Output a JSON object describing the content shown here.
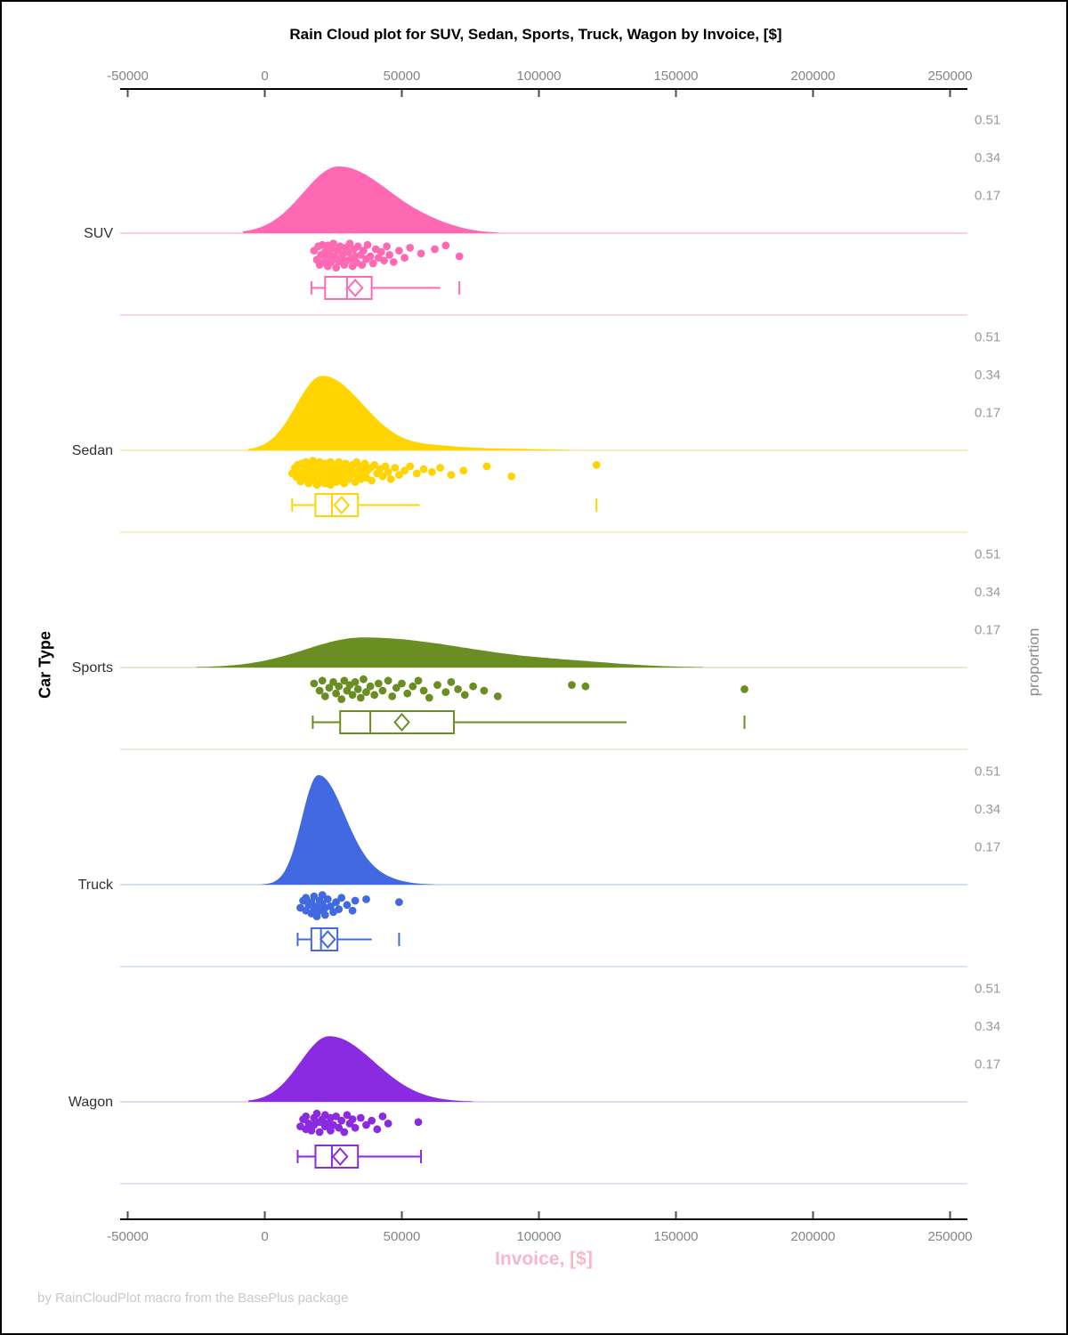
{
  "header": {
    "title": "Rain Cloud plot for SUV, Sedan, Sports, Truck, Wagon by Invoice, [$]"
  },
  "axes": {
    "x_title": "Invoice, [$]",
    "y_title": "Car Type",
    "right_title": "proportion"
  },
  "footer": {
    "note": "by RainCloudPlot macro from the BasePlus package"
  },
  "chart_data": {
    "type": "raincloud (half-violin density + strip points + box plot per category)",
    "title": "Rain Cloud plot for SUV, Sedan, Sports, Truck, Wagon by Invoice, [$]",
    "xlabel": "Invoice, [$]",
    "ylabel": "Car Type",
    "right_axis_label": "proportion",
    "x_ticks": [
      -50000,
      0,
      50000,
      100000,
      150000,
      200000,
      250000
    ],
    "x_range": [
      -52500,
      256500
    ],
    "proportion_ticks": [
      "0.51",
      "0.34",
      "0.17"
    ],
    "proportion_tick_values": [
      0.51,
      0.34,
      0.17
    ],
    "categories": [
      {
        "name": "SUV",
        "color": "#ff69b4",
        "tint": "#f8bfdb",
        "density": {
          "mu": 27000,
          "sl": 13000,
          "sr": 19000,
          "peak": 0.3,
          "bumps": [
            [
              62000,
              9000,
              0.012
            ]
          ],
          "xmin": -8000,
          "xmax": 85000
        },
        "box": {
          "whisker_low": 17000,
          "q1": 22000,
          "median": 30000,
          "mean": 33000,
          "q3": 39000,
          "whisker_high": 64000,
          "max_tick": 71000,
          "right_cap": false
        },
        "points": [
          [
            18000,
            0.3
          ],
          [
            19000,
            0.62
          ],
          [
            19500,
            0.15
          ],
          [
            20000,
            0.8
          ],
          [
            20500,
            0.45
          ],
          [
            21000,
            0.1
          ],
          [
            21500,
            0.7
          ],
          [
            22000,
            0.35
          ],
          [
            22500,
            0.55
          ],
          [
            23000,
            0.12
          ],
          [
            23000,
            0.85
          ],
          [
            23500,
            0.4
          ],
          [
            24000,
            0.72
          ],
          [
            24500,
            0.22
          ],
          [
            25000,
            0.6
          ],
          [
            25000,
            0.05
          ],
          [
            25500,
            0.5
          ],
          [
            26000,
            0.9
          ],
          [
            26500,
            0.3
          ],
          [
            27000,
            0.68
          ],
          [
            27500,
            0.15
          ],
          [
            28000,
            0.55
          ],
          [
            28500,
            0.42
          ],
          [
            29000,
            0.8
          ],
          [
            29500,
            0.2
          ],
          [
            30000,
            0.65
          ],
          [
            30500,
            0.35
          ],
          [
            31000,
            0.05
          ],
          [
            31500,
            0.58
          ],
          [
            32000,
            0.85
          ],
          [
            32500,
            0.25
          ],
          [
            33000,
            0.5
          ],
          [
            33500,
            0.72
          ],
          [
            34000,
            0.15
          ],
          [
            35000,
            0.45
          ],
          [
            35500,
            0.8
          ],
          [
            36000,
            0.3
          ],
          [
            37000,
            0.6
          ],
          [
            37500,
            0.1
          ],
          [
            38500,
            0.5
          ],
          [
            39500,
            0.75
          ],
          [
            40500,
            0.25
          ],
          [
            41500,
            0.55
          ],
          [
            42500,
            0.35
          ],
          [
            43500,
            0.65
          ],
          [
            44500,
            0.15
          ],
          [
            45500,
            0.45
          ],
          [
            47000,
            0.7
          ],
          [
            49000,
            0.3
          ],
          [
            51000,
            0.55
          ],
          [
            53000,
            0.2
          ],
          [
            57000,
            0.4
          ],
          [
            62000,
            0.25
          ],
          [
            66000,
            0.12
          ],
          [
            71000,
            0.5
          ]
        ]
      },
      {
        "name": "Sedan",
        "color": "#ffd400",
        "tint": "#f5e6a3",
        "density": {
          "mu": 21000,
          "sl": 9500,
          "sr": 15000,
          "peak": 0.335,
          "bumps": [
            [
              63000,
              10000,
              0.016
            ],
            [
              88000,
              14000,
              0.007
            ]
          ],
          "xmin": -6000,
          "xmax": 112000
        },
        "box": {
          "whisker_low": 10000,
          "q1": 18500,
          "median": 24500,
          "mean": 28000,
          "q3": 34000,
          "whisker_high": 56500,
          "max_tick": 121000,
          "right_cap": false
        },
        "points": [
          [
            10000,
            0.5
          ],
          [
            11000,
            0.3
          ],
          [
            11500,
            0.62
          ],
          [
            12000,
            0.2
          ],
          [
            12500,
            0.45
          ],
          [
            13000,
            0.78
          ],
          [
            13500,
            0.15
          ],
          [
            14000,
            0.55
          ],
          [
            14500,
            0.35
          ],
          [
            15000,
            0.7
          ],
          [
            15000,
            0.1
          ],
          [
            15500,
            0.5
          ],
          [
            16000,
            0.85
          ],
          [
            16500,
            0.25
          ],
          [
            17000,
            0.6
          ],
          [
            17000,
            0.4
          ],
          [
            17500,
            0.05
          ],
          [
            18000,
            0.75
          ],
          [
            18000,
            0.3
          ],
          [
            18500,
            0.55
          ],
          [
            19000,
            0.9
          ],
          [
            19000,
            0.2
          ],
          [
            19500,
            0.5
          ],
          [
            20000,
            0.8
          ],
          [
            20000,
            0.1
          ],
          [
            20500,
            0.4
          ],
          [
            21000,
            0.65
          ],
          [
            21000,
            0.3
          ],
          [
            21500,
            0.55
          ],
          [
            22000,
            0.85
          ],
          [
            22000,
            0.15
          ],
          [
            22500,
            0.45
          ],
          [
            23000,
            0.7
          ],
          [
            23000,
            0.25
          ],
          [
            23500,
            0.5
          ],
          [
            24000,
            0.9
          ],
          [
            24000,
            0.1
          ],
          [
            24500,
            0.4
          ],
          [
            25000,
            0.65
          ],
          [
            25000,
            0.3
          ],
          [
            25500,
            0.55
          ],
          [
            26000,
            0.8
          ],
          [
            26000,
            0.2
          ],
          [
            26500,
            0.45
          ],
          [
            27000,
            0.75
          ],
          [
            27000,
            0.1
          ],
          [
            27500,
            0.35
          ],
          [
            28000,
            0.6
          ],
          [
            28500,
            0.25
          ],
          [
            29000,
            0.5
          ],
          [
            29000,
            0.85
          ],
          [
            29500,
            0.15
          ],
          [
            30000,
            0.4
          ],
          [
            30500,
            0.7
          ],
          [
            31000,
            0.3
          ],
          [
            31500,
            0.55
          ],
          [
            32000,
            0.2
          ],
          [
            32500,
            0.45
          ],
          [
            33000,
            0.8
          ],
          [
            33500,
            0.1
          ],
          [
            34000,
            0.6
          ],
          [
            34500,
            0.35
          ],
          [
            35000,
            0.7
          ],
          [
            35500,
            0.25
          ],
          [
            36000,
            0.5
          ],
          [
            36500,
            0.15
          ],
          [
            37000,
            0.65
          ],
          [
            37500,
            0.4
          ],
          [
            38500,
            0.3
          ],
          [
            39000,
            0.75
          ],
          [
            40000,
            0.2
          ],
          [
            41000,
            0.5
          ],
          [
            42000,
            0.35
          ],
          [
            43000,
            0.6
          ],
          [
            44000,
            0.25
          ],
          [
            45000,
            0.45
          ],
          [
            46000,
            0.7
          ],
          [
            47500,
            0.3
          ],
          [
            49000,
            0.55
          ],
          [
            51000,
            0.4
          ],
          [
            53000,
            0.25
          ],
          [
            55500,
            0.5
          ],
          [
            58000,
            0.35
          ],
          [
            61000,
            0.45
          ],
          [
            64000,
            0.3
          ],
          [
            68000,
            0.55
          ],
          [
            72500,
            0.4
          ],
          [
            81000,
            0.25
          ],
          [
            90000,
            0.6
          ],
          [
            121000,
            0.2
          ]
        ]
      },
      {
        "name": "Sports",
        "color": "#6b8e23",
        "tint": "#d9e3c4",
        "density": {
          "mu": 36000,
          "sl": 21000,
          "sr": 40000,
          "peak": 0.135,
          "bumps": [
            [
              115000,
              18000,
              0.012
            ]
          ],
          "xmin": -25000,
          "xmax": 160000
        },
        "box": {
          "whisker_low": 17500,
          "q1": 27500,
          "median": 38500,
          "mean": 50000,
          "q3": 69000,
          "whisker_high": 132000,
          "max_tick": 175000,
          "right_cap": false
        },
        "points": [
          [
            18000,
            0.25
          ],
          [
            20000,
            0.5
          ],
          [
            21000,
            0.15
          ],
          [
            22000,
            0.7
          ],
          [
            23500,
            0.4
          ],
          [
            25000,
            0.2
          ],
          [
            26000,
            0.6
          ],
          [
            27000,
            0.35
          ],
          [
            28000,
            0.8
          ],
          [
            29000,
            0.15
          ],
          [
            30000,
            0.5
          ],
          [
            31000,
            0.3
          ],
          [
            32000,
            0.65
          ],
          [
            33000,
            0.2
          ],
          [
            34000,
            0.45
          ],
          [
            35000,
            0.75
          ],
          [
            36000,
            0.1
          ],
          [
            37000,
            0.55
          ],
          [
            38500,
            0.35
          ],
          [
            40000,
            0.65
          ],
          [
            41500,
            0.25
          ],
          [
            43000,
            0.5
          ],
          [
            45000,
            0.15
          ],
          [
            46500,
            0.7
          ],
          [
            48000,
            0.4
          ],
          [
            50000,
            0.25
          ],
          [
            52000,
            0.6
          ],
          [
            54000,
            0.35
          ],
          [
            56000,
            0.15
          ],
          [
            58000,
            0.5
          ],
          [
            60000,
            0.75
          ],
          [
            63000,
            0.3
          ],
          [
            66000,
            0.55
          ],
          [
            68000,
            0.2
          ],
          [
            70500,
            0.45
          ],
          [
            73000,
            0.65
          ],
          [
            76000,
            0.35
          ],
          [
            80000,
            0.5
          ],
          [
            85000,
            0.7
          ],
          [
            112000,
            0.3
          ],
          [
            117000,
            0.35
          ],
          [
            175000,
            0.45
          ]
        ]
      },
      {
        "name": "Truck",
        "color": "#4169e1",
        "tint": "#c4d3f1",
        "density": {
          "mu": 19500,
          "sl": 6000,
          "sr": 9500,
          "peak": 0.488,
          "bumps": [
            [
              38000,
              9000,
              0.035
            ]
          ],
          "xmin": -1000,
          "xmax": 62000
        },
        "box": {
          "whisker_low": 12000,
          "q1": 17000,
          "median": 20500,
          "mean": 23000,
          "q3": 26500,
          "whisker_high": 39000,
          "max_tick": 49000,
          "right_cap": false
        },
        "points": [
          [
            13000,
            0.5
          ],
          [
            14000,
            0.25
          ],
          [
            15000,
            0.6
          ],
          [
            15000,
            0.15
          ],
          [
            16000,
            0.4
          ],
          [
            17000,
            0.7
          ],
          [
            17000,
            0.3
          ],
          [
            18000,
            0.55
          ],
          [
            18000,
            0.1
          ],
          [
            19000,
            0.45
          ],
          [
            19000,
            0.8
          ],
          [
            20000,
            0.25
          ],
          [
            20000,
            0.6
          ],
          [
            21000,
            0.35
          ],
          [
            21000,
            0.05
          ],
          [
            22000,
            0.5
          ],
          [
            22000,
            0.75
          ],
          [
            23000,
            0.2
          ],
          [
            24000,
            0.45
          ],
          [
            25000,
            0.65
          ],
          [
            26000,
            0.3
          ],
          [
            27000,
            0.55
          ],
          [
            28000,
            0.15
          ],
          [
            30000,
            0.4
          ],
          [
            32000,
            0.6
          ],
          [
            33000,
            0.25
          ],
          [
            37000,
            0.2
          ],
          [
            49000,
            0.3
          ]
        ]
      },
      {
        "name": "Wagon",
        "color": "#8a2be2",
        "tint": "#dcc9f0",
        "density": {
          "mu": 23500,
          "sl": 10500,
          "sr": 16500,
          "peak": 0.295,
          "bumps": [],
          "xmin": -6000,
          "xmax": 76000
        },
        "box": {
          "whisker_low": 12000,
          "q1": 18500,
          "median": 24500,
          "mean": 27500,
          "q3": 34000,
          "whisker_high": 57000,
          "max_tick": null,
          "right_cap": true
        },
        "points": [
          [
            13000,
            0.55
          ],
          [
            14000,
            0.3
          ],
          [
            15000,
            0.65
          ],
          [
            15000,
            0.2
          ],
          [
            16000,
            0.45
          ],
          [
            17000,
            0.7
          ],
          [
            18000,
            0.25
          ],
          [
            18000,
            0.5
          ],
          [
            19000,
            0.1
          ],
          [
            20000,
            0.4
          ],
          [
            20000,
            0.75
          ],
          [
            21000,
            0.3
          ],
          [
            22000,
            0.55
          ],
          [
            22000,
            0.15
          ],
          [
            23000,
            0.45
          ],
          [
            24000,
            0.7
          ],
          [
            24000,
            0.25
          ],
          [
            25000,
            0.5
          ],
          [
            26000,
            0.2
          ],
          [
            27000,
            0.6
          ],
          [
            28000,
            0.35
          ],
          [
            29000,
            0.75
          ],
          [
            30000,
            0.15
          ],
          [
            31000,
            0.45
          ],
          [
            32000,
            0.3
          ],
          [
            33000,
            0.6
          ],
          [
            35000,
            0.25
          ],
          [
            37000,
            0.5
          ],
          [
            39000,
            0.35
          ],
          [
            41000,
            0.65
          ],
          [
            43000,
            0.2
          ],
          [
            45000,
            0.45
          ],
          [
            56000,
            0.4
          ]
        ]
      }
    ]
  }
}
